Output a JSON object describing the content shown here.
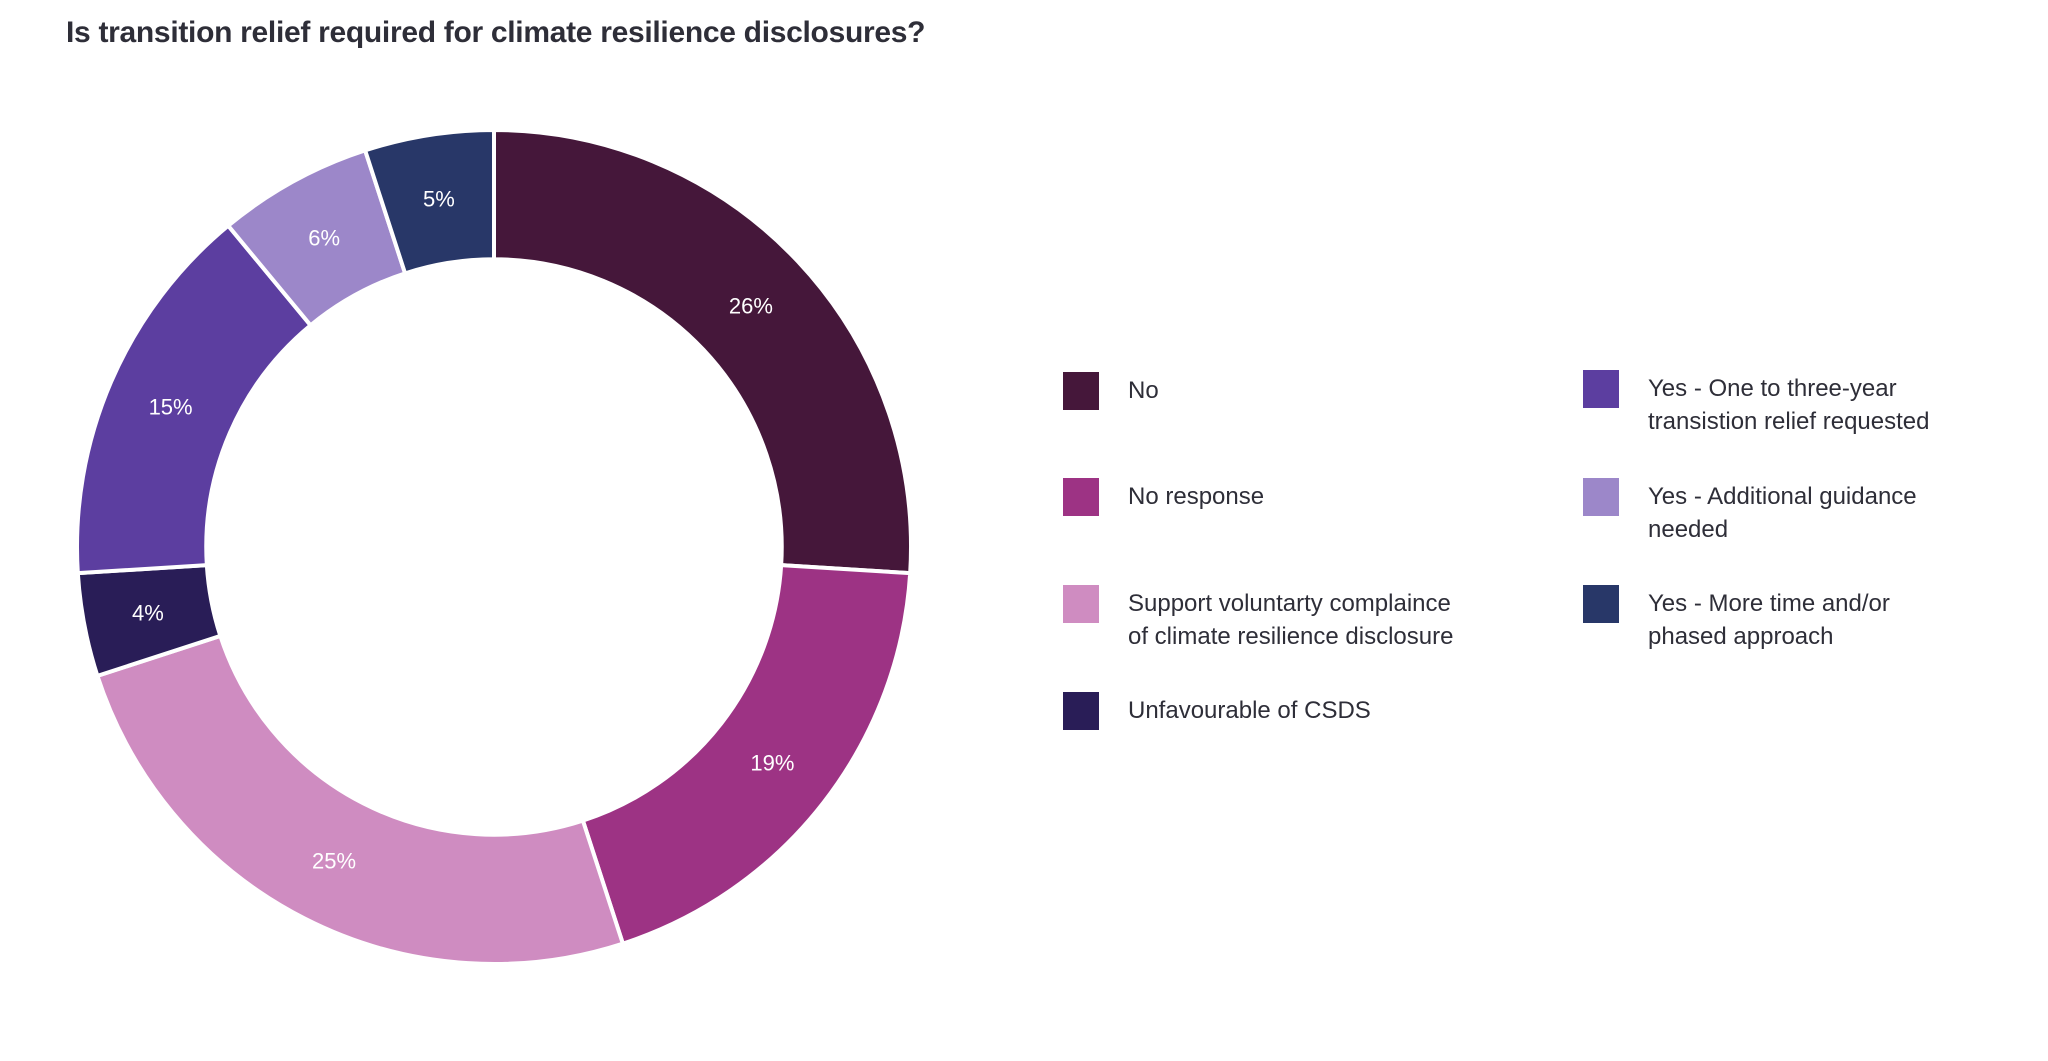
{
  "title": "Is transition relief required for climate resilience disclosures?",
  "text_color": "#2E2E38",
  "background_color": "#FFFFFF",
  "chart_data": {
    "type": "pie",
    "subtype": "donut",
    "title": "Is transition relief required for climate resilience disclosures?",
    "start_angle": "12 o'clock",
    "direction": "clockwise",
    "inner_radius_ratio": 0.69,
    "separator_color": "#FFFFFF",
    "value_label_format": "percent",
    "value_label_color": "#FFFFFF",
    "legend_position": "right, two columns",
    "grid": false,
    "segments": [
      {
        "label": "No",
        "label_lines": [
          "No"
        ],
        "value": 26,
        "display_value": "26%",
        "color": "#45173A"
      },
      {
        "label": "No response",
        "label_lines": [
          "No response"
        ],
        "value": 19,
        "display_value": "19%",
        "color": "#9D3384"
      },
      {
        "label": "Support voluntarty complaince of climate resilience disclosure",
        "label_lines": [
          "Support voluntarty complaince",
          "of climate resilience disclosure"
        ],
        "value": 25,
        "display_value": "25%",
        "color": "#CF8CC1"
      },
      {
        "label": "Unfavourable of CSDS",
        "label_lines": [
          "Unfavourable of CSDS"
        ],
        "value": 4,
        "display_value": "4%",
        "color": "#291D57"
      },
      {
        "label": "Yes - One to three-year transistion relief requested",
        "label_lines": [
          "Yes - One to three-year",
          "transistion relief requested"
        ],
        "value": 15,
        "display_value": "15%",
        "color": "#5C3EA0"
      },
      {
        "label": "Yes - Additional guidance needed",
        "label_lines": [
          "Yes - Additional guidance",
          "needed"
        ],
        "value": 6,
        "display_value": "6%",
        "color": "#9C87C9"
      },
      {
        "label": "Yes - More time and/or phased approach",
        "label_lines": [
          "Yes - More time and/or",
          "phased approach"
        ],
        "value": 5,
        "display_value": "5%",
        "color": "#283768"
      }
    ]
  }
}
